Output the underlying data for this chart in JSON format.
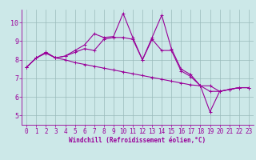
{
  "x": [
    0,
    1,
    2,
    3,
    4,
    5,
    6,
    7,
    8,
    9,
    10,
    11,
    12,
    13,
    14,
    15,
    16,
    17,
    18,
    19,
    20,
    21,
    22,
    23
  ],
  "line1": [
    7.6,
    8.1,
    8.4,
    8.1,
    8.2,
    8.5,
    8.8,
    9.4,
    9.2,
    9.25,
    10.5,
    9.2,
    8.0,
    9.2,
    10.4,
    8.6,
    7.5,
    7.2,
    6.6,
    5.2,
    6.3,
    6.4,
    6.5,
    6.5
  ],
  "line2": [
    7.6,
    8.1,
    8.4,
    8.1,
    8.2,
    8.4,
    8.6,
    8.5,
    9.1,
    9.2,
    9.2,
    9.1,
    8.0,
    9.1,
    8.5,
    8.5,
    7.4,
    7.1,
    6.6,
    6.6,
    6.3,
    6.4,
    6.5,
    6.5
  ],
  "line3": [
    7.6,
    8.1,
    8.35,
    8.1,
    8.0,
    7.85,
    7.75,
    7.65,
    7.55,
    7.45,
    7.35,
    7.25,
    7.15,
    7.05,
    6.95,
    6.85,
    6.75,
    6.65,
    6.6,
    6.3,
    6.3,
    6.4,
    6.5,
    6.5
  ],
  "bg_color": "#cce8e8",
  "line_color": "#990099",
  "grid_color": "#99bbbb",
  "xlabel": "Windchill (Refroidissement éolien,°C)",
  "ylim": [
    4.5,
    10.7
  ],
  "xlim": [
    -0.5,
    23.5
  ],
  "yticks": [
    5,
    6,
    7,
    8,
    9,
    10
  ],
  "xticks": [
    0,
    1,
    2,
    3,
    4,
    5,
    6,
    7,
    8,
    9,
    10,
    11,
    12,
    13,
    14,
    15,
    16,
    17,
    18,
    19,
    20,
    21,
    22,
    23
  ],
  "tick_fontsize": 5.5,
  "xlabel_fontsize": 5.5,
  "marker_size": 3,
  "line_width": 0.8
}
